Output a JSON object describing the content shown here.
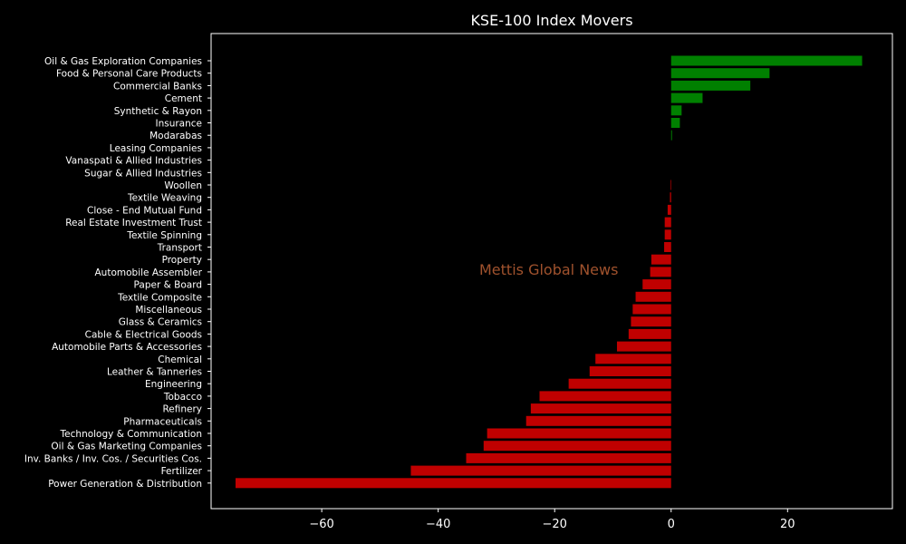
{
  "chart_data": {
    "type": "bar",
    "orientation": "horizontal",
    "title": "KSE-100 Index Movers",
    "xlabel": "",
    "ylabel": "",
    "xlim": [
      -79,
      38
    ],
    "xticks": [
      "−60",
      "−40",
      "−20",
      "0",
      "20"
    ],
    "xtick_values": [
      -60,
      -40,
      -20,
      0,
      20
    ],
    "grid": false,
    "watermark": "Mettis Global News",
    "colors": {
      "positive": "#008000",
      "negative": "#c00000",
      "background": "#000000",
      "axes": "#ffffff",
      "text": "#ffffff",
      "watermark": "#a0522d"
    },
    "categories": [
      "Oil & Gas Exploration Companies",
      "Food & Personal Care Products",
      "Commercial Banks",
      "Cement",
      "Synthetic & Rayon",
      "Insurance",
      "Modarabas",
      "Leasing Companies",
      "Vanaspati & Allied Industries",
      "Sugar & Allied Industries",
      "Woollen",
      "Textile Weaving",
      "Close - End Mutual Fund",
      "Real Estate Investment Trust",
      "Textile Spinning",
      "Transport",
      "Property",
      "Automobile Assembler",
      "Paper & Board",
      "Textile Composite",
      "Miscellaneous",
      "Glass & Ceramics",
      "Cable & Electrical Goods",
      "Automobile Parts & Accessories",
      "Chemical",
      "Leather & Tanneries",
      "Engineering",
      "Tobacco",
      "Refinery",
      "Pharmaceuticals",
      "Technology & Communication",
      "Oil & Gas Marketing Companies",
      "Inv. Banks / Inv. Cos. / Securities Cos.",
      "Fertilizer",
      "Power Generation & Distribution"
    ],
    "values": [
      32.8,
      16.9,
      13.6,
      5.4,
      1.8,
      1.5,
      0.15,
      0,
      0,
      0,
      -0.1,
      -0.2,
      -0.6,
      -1.1,
      -1.1,
      -1.2,
      -3.4,
      -3.6,
      -4.9,
      -6.1,
      -6.6,
      -6.9,
      -7.3,
      -9.3,
      -13.0,
      -14.0,
      -17.6,
      -22.6,
      -24.1,
      -24.9,
      -31.6,
      -32.2,
      -35.2,
      -44.7,
      -74.8
    ]
  }
}
